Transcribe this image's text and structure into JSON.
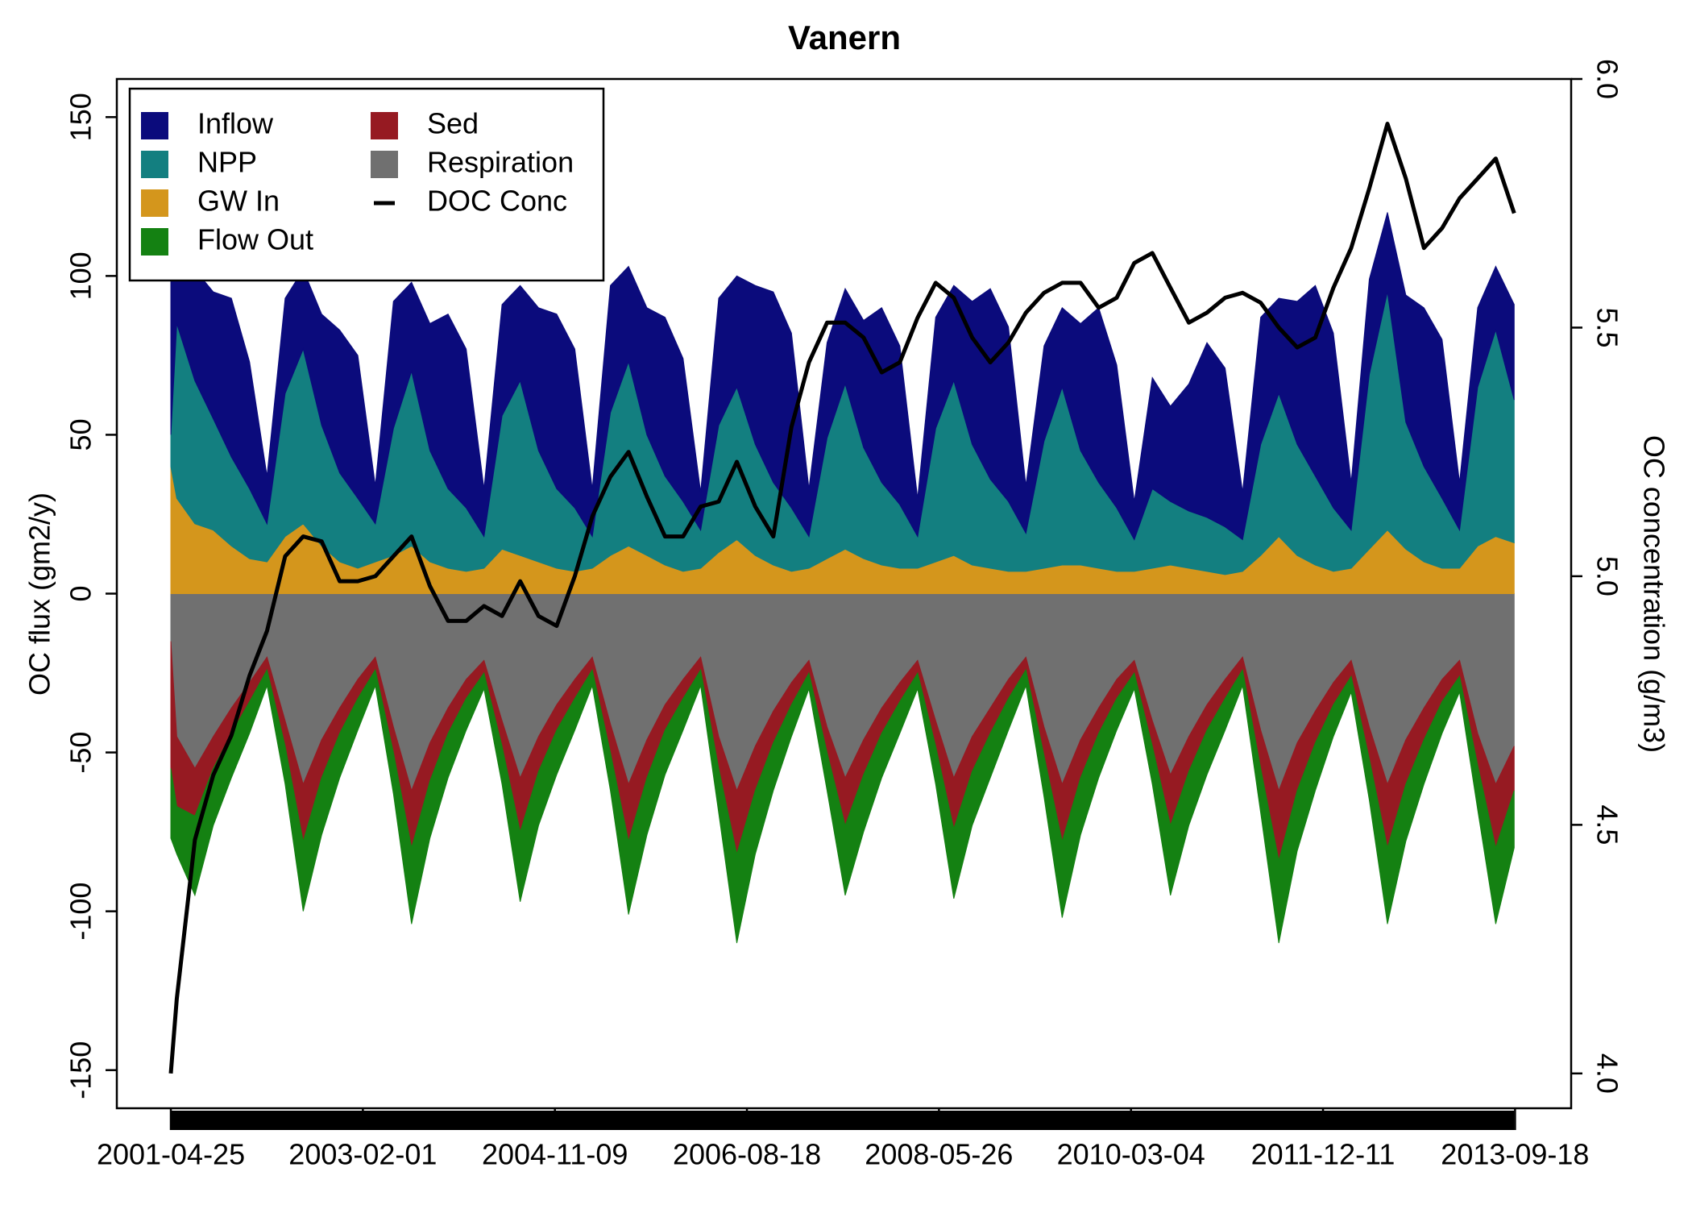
{
  "chart_data": {
    "type": "area",
    "title": "Vanern",
    "ylabel": "OC flux (gm2/y)",
    "y2label": "OC concentration (g/m3)",
    "legend": "top-left",
    "xlim": [
      "2000-10-25",
      "2014-03-26"
    ],
    "xticks": [
      "2001-04-25",
      "2003-02-01",
      "2004-11-09",
      "2006-08-18",
      "2008-05-26",
      "2010-03-04",
      "2011-12-11",
      "2013-09-18"
    ],
    "ylim": [
      -162,
      162
    ],
    "yticks": [
      -150,
      -100,
      -50,
      0,
      50,
      100,
      150
    ],
    "y2lim": [
      3.93,
      6.0
    ],
    "y2ticks": [
      {
        "value": 4,
        "label": "4.0"
      },
      4.5,
      {
        "value": 5,
        "label": "5.0"
      },
      5.5,
      {
        "value": 6,
        "label": "6.0"
      }
    ],
    "x": [
      "2001-04-25",
      "2001-05-15",
      "2001-07-15",
      "2001-09-15",
      "2001-11-15",
      "2002-01-15",
      "2002-03-15",
      "2002-05-15",
      "2002-07-15",
      "2002-09-15",
      "2002-11-15",
      "2003-01-15",
      "2003-03-15",
      "2003-05-15",
      "2003-07-15",
      "2003-09-15",
      "2003-11-15",
      "2004-01-15",
      "2004-03-15",
      "2004-05-15",
      "2004-07-15",
      "2004-09-15",
      "2004-11-15",
      "2005-01-15",
      "2005-03-15",
      "2005-05-15",
      "2005-07-15",
      "2005-09-15",
      "2005-11-15",
      "2006-01-15",
      "2006-03-15",
      "2006-05-15",
      "2006-07-15",
      "2006-09-15",
      "2006-11-15",
      "2007-01-15",
      "2007-03-15",
      "2007-05-15",
      "2007-07-15",
      "2007-09-15",
      "2007-11-15",
      "2008-01-15",
      "2008-03-15",
      "2008-05-15",
      "2008-07-15",
      "2008-09-15",
      "2008-11-15",
      "2009-01-15",
      "2009-03-15",
      "2009-05-15",
      "2009-07-15",
      "2009-09-15",
      "2009-11-15",
      "2010-01-15",
      "2010-03-15",
      "2010-05-15",
      "2010-07-15",
      "2010-09-15",
      "2010-11-15",
      "2011-01-15",
      "2011-03-15",
      "2011-05-15",
      "2011-07-15",
      "2011-09-15",
      "2011-11-15",
      "2012-01-15",
      "2012-03-15",
      "2012-05-15",
      "2012-07-15",
      "2012-09-15",
      "2012-11-15",
      "2013-01-15",
      "2013-03-15",
      "2013-05-15",
      "2013-07-15",
      "2013-09-15"
    ],
    "series": [
      {
        "name": "Inflow",
        "color": "#0b0b7c",
        "values": [
          60,
          45,
          35,
          40,
          50,
          40,
          15,
          30,
          25,
          35,
          45,
          45,
          12,
          40,
          28,
          40,
          55,
          50,
          15,
          35,
          30,
          45,
          55,
          50,
          15,
          40,
          30,
          40,
          50,
          45,
          12,
          40,
          35,
          50,
          60,
          55,
          15,
          30,
          30,
          40,
          55,
          50,
          12,
          35,
          30,
          45,
          60,
          55,
          15,
          30,
          25,
          40,
          55,
          45,
          12,
          35,
          30,
          40,
          55,
          50,
          15,
          40,
          30,
          45,
          60,
          55,
          15,
          30,
          25,
          40,
          50,
          50,
          15,
          25,
          20,
          30
        ]
      },
      {
        "name": "NPP",
        "color": "#137f80",
        "values": [
          10,
          55,
          45,
          35,
          28,
          22,
          12,
          45,
          55,
          38,
          28,
          22,
          12,
          40,
          55,
          35,
          25,
          20,
          10,
          42,
          55,
          35,
          25,
          20,
          10,
          45,
          58,
          38,
          28,
          22,
          12,
          40,
          48,
          35,
          26,
          20,
          10,
          38,
          52,
          35,
          26,
          20,
          10,
          42,
          55,
          38,
          28,
          22,
          12,
          40,
          56,
          36,
          27,
          20,
          10,
          25,
          20,
          18,
          17,
          15,
          10,
          35,
          45,
          35,
          28,
          20,
          12,
          55,
          75,
          40,
          30,
          22,
          12,
          50,
          65,
          45
        ]
      },
      {
        "name": "GW In",
        "color": "#d4961c",
        "values": [
          40,
          30,
          22,
          20,
          15,
          11,
          10,
          18,
          22,
          15,
          10,
          8,
          10,
          12,
          15,
          10,
          8,
          7,
          8,
          14,
          12,
          10,
          8,
          7,
          8,
          12,
          15,
          12,
          9,
          7,
          8,
          13,
          17,
          12,
          9,
          7,
          8,
          11,
          14,
          11,
          9,
          8,
          8,
          10,
          12,
          9,
          8,
          7,
          7,
          8,
          9,
          9,
          8,
          7,
          7,
          8,
          9,
          8,
          7,
          6,
          7,
          12,
          18,
          12,
          9,
          7,
          8,
          14,
          20,
          14,
          10,
          8,
          8,
          15,
          18,
          16
        ]
      },
      {
        "name": "Flow Out",
        "color": "#148112",
        "values": [
          -22,
          -15,
          -25,
          -18,
          -14,
          -10,
          -5,
          -12,
          -22,
          -18,
          -14,
          -10,
          -5,
          -13,
          -24,
          -18,
          -14,
          -10,
          -5,
          -12,
          -22,
          -17,
          -14,
          -10,
          -5,
          -12,
          -23,
          -18,
          -14,
          -10,
          -5,
          -14,
          -28,
          -20,
          -15,
          -10,
          -5,
          -12,
          -22,
          -18,
          -14,
          -10,
          -5,
          -12,
          -22,
          -17,
          -14,
          -10,
          -5,
          -13,
          -24,
          -18,
          -14,
          -10,
          -5,
          -12,
          -22,
          -17,
          -14,
          -10,
          -5,
          -14,
          -26,
          -19,
          -15,
          -10,
          -5,
          -13,
          -24,
          -18,
          -14,
          -10,
          -5,
          -14,
          -24,
          -18
        ]
      },
      {
        "name": "Sed",
        "color": "#961a22",
        "values": [
          -40,
          -22,
          -15,
          -10,
          -8,
          -6,
          -4,
          -8,
          -18,
          -12,
          -8,
          -6,
          -4,
          -8,
          -18,
          -12,
          -8,
          -6,
          -4,
          -8,
          -17,
          -11,
          -8,
          -6,
          -4,
          -9,
          -18,
          -12,
          -8,
          -6,
          -4,
          -10,
          -20,
          -14,
          -10,
          -7,
          -4,
          -8,
          -15,
          -11,
          -8,
          -6,
          -4,
          -8,
          -16,
          -11,
          -8,
          -6,
          -4,
          -9,
          -18,
          -12,
          -8,
          -6,
          -4,
          -8,
          -16,
          -11,
          -8,
          -6,
          -4,
          -12,
          -22,
          -15,
          -10,
          -7,
          -5,
          -10,
          -20,
          -14,
          -10,
          -7,
          -5,
          -10,
          -20,
          -14
        ]
      },
      {
        "name": "Respiration",
        "color": "#707070",
        "values": [
          -15,
          -45,
          -55,
          -45,
          -36,
          -28,
          -20,
          -40,
          -60,
          -46,
          -36,
          -27,
          -20,
          -42,
          -62,
          -47,
          -36,
          -27,
          -21,
          -40,
          -58,
          -45,
          -35,
          -27,
          -20,
          -41,
          -60,
          -46,
          -35,
          -27,
          -20,
          -45,
          -62,
          -48,
          -37,
          -28,
          -21,
          -42,
          -58,
          -46,
          -36,
          -28,
          -21,
          -40,
          -58,
          -45,
          -36,
          -27,
          -20,
          -42,
          -60,
          -46,
          -36,
          -27,
          -21,
          -40,
          -57,
          -45,
          -35,
          -27,
          -20,
          -43,
          -62,
          -47,
          -37,
          -28,
          -21,
          -42,
          -60,
          -46,
          -36,
          -27,
          -21,
          -44,
          -60,
          -48
        ]
      },
      {
        "name": "DOC Conc",
        "color": "#000000",
        "type": "line",
        "axis": "y2",
        "values": [
          4.0,
          4.15,
          4.47,
          4.6,
          4.68,
          4.8,
          4.89,
          5.04,
          5.08,
          5.07,
          4.99,
          4.99,
          5.0,
          5.04,
          5.08,
          4.98,
          4.91,
          4.91,
          4.94,
          4.92,
          4.99,
          4.92,
          4.9,
          5.0,
          5.12,
          5.2,
          5.25,
          5.16,
          5.08,
          5.08,
          5.14,
          5.15,
          5.23,
          5.14,
          5.08,
          5.3,
          5.43,
          5.51,
          5.51,
          5.48,
          5.41,
          5.43,
          5.52,
          5.59,
          5.56,
          5.48,
          5.43,
          5.47,
          5.53,
          5.57,
          5.59,
          5.59,
          5.54,
          5.56,
          5.63,
          5.65,
          5.58,
          5.51,
          5.53,
          5.56,
          5.57,
          5.55,
          5.5,
          5.46,
          5.48,
          5.58,
          5.66,
          5.78,
          5.91,
          5.8,
          5.66,
          5.7,
          5.76,
          5.8,
          5.84,
          5.73
        ]
      }
    ]
  }
}
